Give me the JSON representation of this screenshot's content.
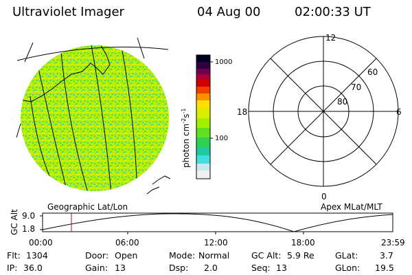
{
  "header": {
    "instrument": "Ultraviolet Imager",
    "date": "04 Aug 00",
    "time": "02:00:33 UT"
  },
  "left_panel": {
    "caption": "Geographic Lat/Lon"
  },
  "colorbar": {
    "unit_label": "photon cm-2s-1",
    "unit_base": "photon cm",
    "unit_exp1": "-2",
    "unit_mid": "s",
    "unit_exp2": "-1",
    "tick_1000": "1000",
    "tick_100": "100",
    "scale": "log",
    "min": 10,
    "max": 1300,
    "colors": [
      "#f0f0f0",
      "#c8e8ec",
      "#40e0e0",
      "#20c8a0",
      "#30d050",
      "#60e020",
      "#a0f000",
      "#d8f000",
      "#ffe000",
      "#ff9000",
      "#f04000",
      "#d00000",
      "#b00030",
      "#700050",
      "#300040",
      "#000020"
    ]
  },
  "right_panel": {
    "caption": "Apex MLat/MLT",
    "mlt_top": "12",
    "mlt_bottom": "0",
    "mlt_left": "18",
    "mlt_right": "6",
    "lat_60": "60",
    "lat_70": "70",
    "lat_80": "80"
  },
  "altitude_plot": {
    "ylabel": "GC Alt",
    "ytick_top": "9.0",
    "ytick_bottom": "1.8",
    "xticks": [
      "00:00",
      "06:00",
      "12:00",
      "18:00",
      "23:59"
    ],
    "marker_time": "02:00:33",
    "marker_color": "#cc0000"
  },
  "footer": {
    "flt_label": "Flt:",
    "flt_value": "1304",
    "ip_label": "IP:",
    "ip_value": "36.0",
    "door_label": "Door:",
    "door_value": "Open",
    "gain_label": "Gain:",
    "gain_value": "13",
    "mode_label": "Mode:",
    "mode_value": "Normal",
    "dsp_label": "Dsp:",
    "dsp_value": "2.0",
    "gcalt_label": "GC Alt:",
    "gcalt_value": "5.9 Re",
    "seq_label": "Seq:",
    "seq_value": "13",
    "glat_label": "GLat:",
    "glat_value": "3.7",
    "glon_label": "GLon:",
    "glon_value": "19.5"
  }
}
